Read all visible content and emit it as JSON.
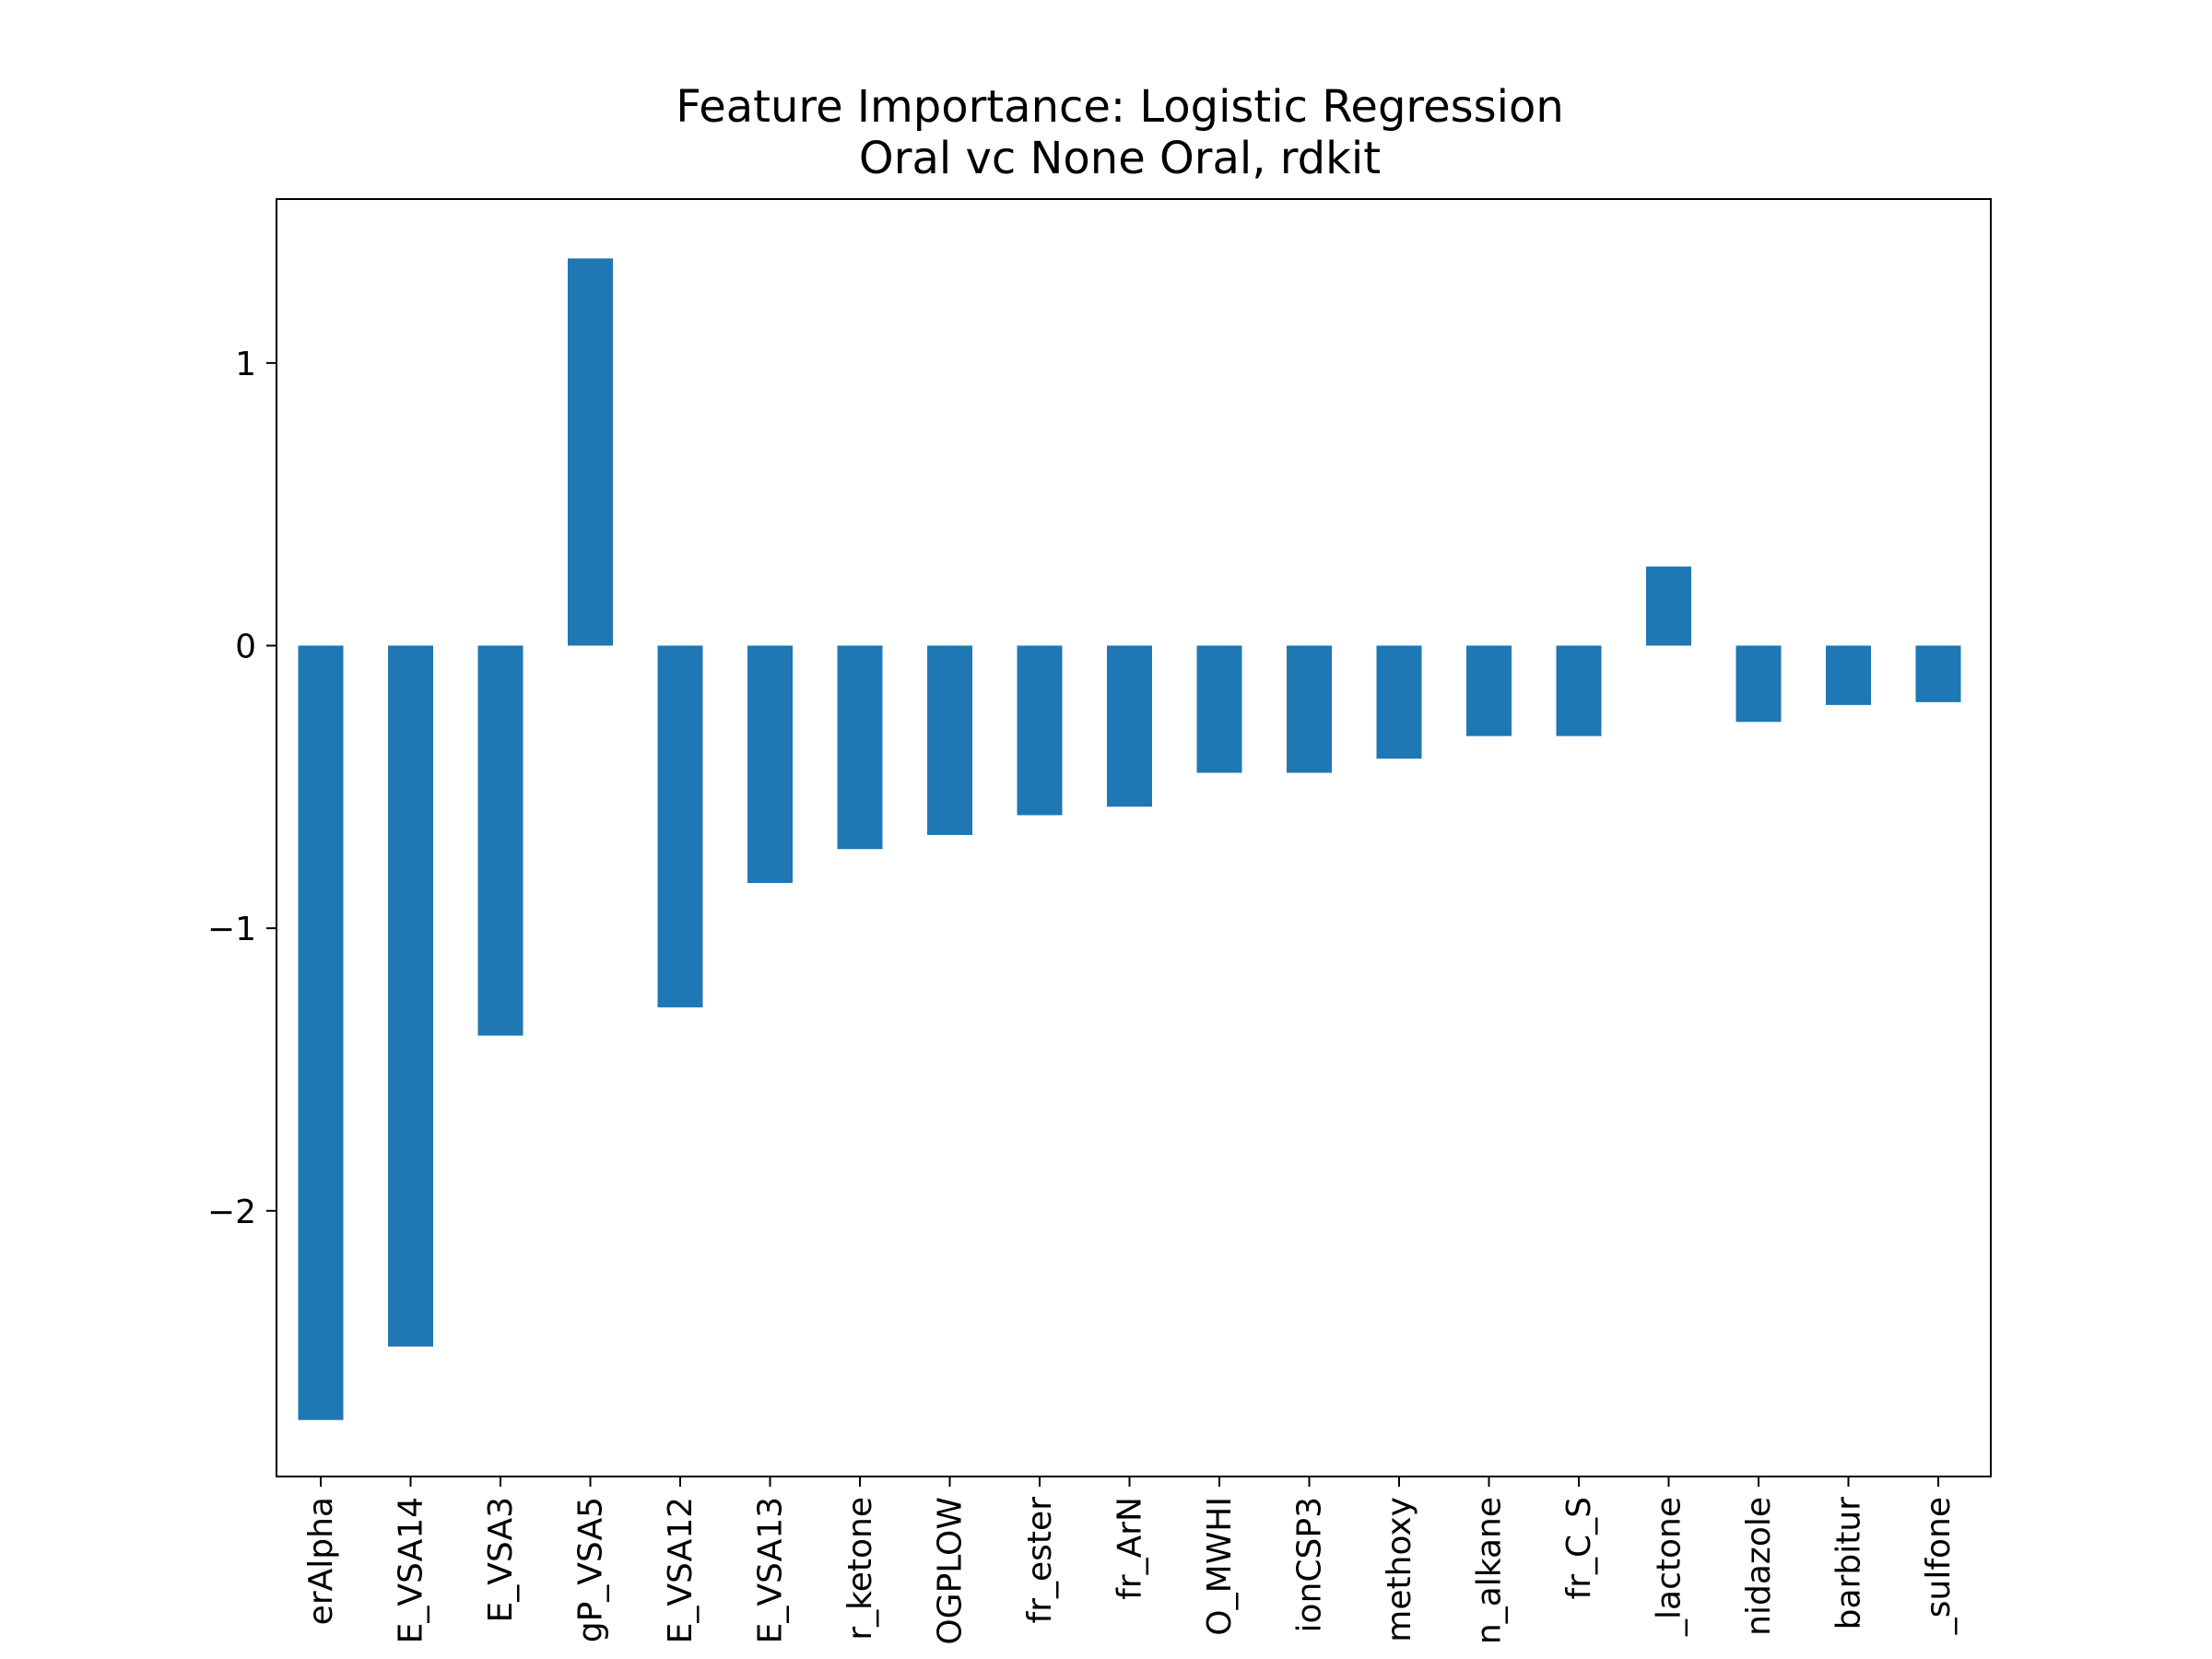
{
  "chart_data": {
    "type": "bar",
    "title": "Feature Importance: Logistic Regression",
    "subtitle": "Oral vc None Oral, rdkit",
    "xlabel": "",
    "ylabel": "",
    "categories": [
      "erAlpha",
      "E_VSA14",
      "E_VSA3",
      "gP_VSA5",
      "E_VSA12",
      "E_VSA13",
      "r_ketone",
      "OGPLOW",
      "fr_ester",
      "fr_ArN",
      "O_MWHI",
      "ionCSP3",
      "methoxy",
      "n_alkane",
      "fr_C_S",
      "_lactone",
      "nidazole",
      "barbitur",
      "_sulfone"
    ],
    "values": [
      -2.74,
      -2.48,
      -1.38,
      1.37,
      -1.28,
      -0.84,
      -0.72,
      -0.67,
      -0.6,
      -0.57,
      -0.45,
      -0.45,
      -0.4,
      -0.32,
      -0.32,
      0.28,
      -0.27,
      -0.21,
      -0.2
    ],
    "ylim": [
      -2.94,
      1.58
    ],
    "yticks": [
      1,
      0,
      -1,
      -2
    ],
    "ytick_labels": [
      "1",
      "0",
      "−1",
      "−2"
    ],
    "bar_color": "#1f77b4",
    "grid": false,
    "legend": "none"
  }
}
